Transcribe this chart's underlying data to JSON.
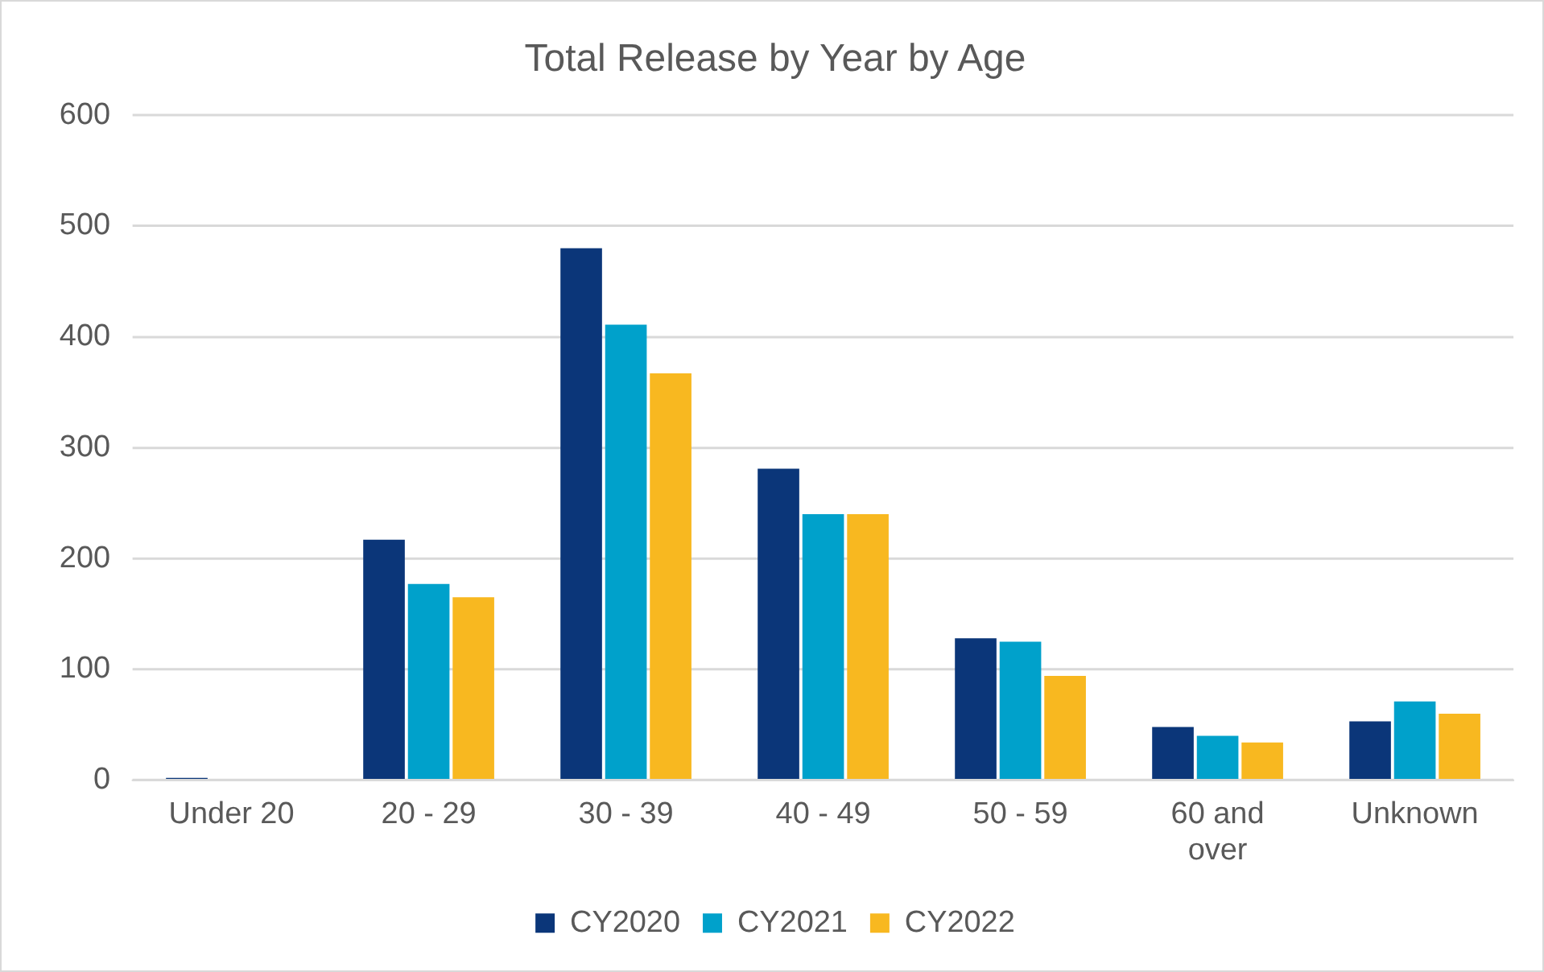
{
  "chart_data": {
    "type": "bar",
    "title": "Total Release by Year by Age",
    "categories": [
      "Under 20",
      "20 - 29",
      "30 - 39",
      "40 - 49",
      "50 - 59",
      "60 and over",
      "Unknown"
    ],
    "series": [
      {
        "name": "CY2020",
        "color": "#0b3679",
        "values": [
          2,
          217,
          480,
          281,
          128,
          48,
          53
        ]
      },
      {
        "name": "CY2021",
        "color": "#00a1cb",
        "values": [
          0,
          177,
          411,
          240,
          125,
          40,
          71
        ]
      },
      {
        "name": "CY2022",
        "color": "#f8b820",
        "values": [
          0,
          165,
          367,
          240,
          94,
          34,
          60
        ]
      }
    ],
    "ylim": [
      0,
      600
    ],
    "yticks": [
      0,
      100,
      200,
      300,
      400,
      500,
      600
    ],
    "grid": "y",
    "legend": "bottom"
  }
}
